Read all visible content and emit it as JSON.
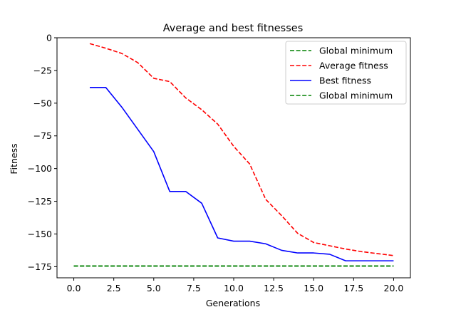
{
  "chart_data": {
    "type": "line",
    "title": "Average and best fitnesses",
    "xlabel": "Generations",
    "ylabel": "Fitness",
    "xlim": [
      -1.05,
      21.05
    ],
    "ylim": [
      -183.5,
      0
    ],
    "xticks": [
      0.0,
      2.5,
      5.0,
      7.5,
      10.0,
      12.5,
      15.0,
      17.5,
      20.0
    ],
    "xtick_labels": [
      "0.0",
      "2.5",
      "5.0",
      "7.5",
      "10.0",
      "12.5",
      "15.0",
      "17.5",
      "20.0"
    ],
    "yticks": [
      0,
      -25,
      -50,
      -75,
      -100,
      -125,
      -150,
      -175
    ],
    "ytick_labels": [
      "0",
      "−25",
      "−50",
      "−75",
      "−100",
      "−125",
      "−150",
      "−175"
    ],
    "grid": false,
    "legend_position": "top-right",
    "series": [
      {
        "name": "Global minimum",
        "color": "#008000",
        "style": "dashed",
        "x": [
          0,
          20
        ],
        "y": [
          -174.5,
          -174.5
        ]
      },
      {
        "name": "Average fitness",
        "color": "#ff0000",
        "style": "dashed",
        "x": [
          1,
          2,
          3,
          4,
          5,
          6,
          7,
          8,
          9,
          10,
          11,
          12,
          13,
          14,
          15,
          16,
          17,
          18,
          19,
          20
        ],
        "y": [
          -4.5,
          -8,
          -12,
          -19,
          -31,
          -33.5,
          -46,
          -55,
          -66,
          -83,
          -96.5,
          -123.5,
          -136,
          -149.5,
          -156.5,
          -159,
          -161.5,
          -163.5,
          -165,
          -166.5
        ]
      },
      {
        "name": "Best fitness",
        "color": "#0000ff",
        "style": "solid",
        "x": [
          1,
          2,
          3,
          4,
          5,
          6,
          7,
          8,
          9,
          10,
          11,
          12,
          13,
          14,
          15,
          16,
          17,
          18,
          19,
          20
        ],
        "y": [
          -38,
          -38,
          -53,
          -70,
          -87,
          -117.5,
          -117.5,
          -126.5,
          -153,
          -155.5,
          -155.5,
          -157.5,
          -162.5,
          -164.5,
          -164.5,
          -165.5,
          -170.5,
          -170.5,
          -170.5,
          -170.5
        ]
      },
      {
        "name": "Global minimum",
        "color": "#008000",
        "style": "dashed",
        "x": [
          0,
          20
        ],
        "y": [
          -174.5,
          -174.5
        ]
      }
    ]
  }
}
